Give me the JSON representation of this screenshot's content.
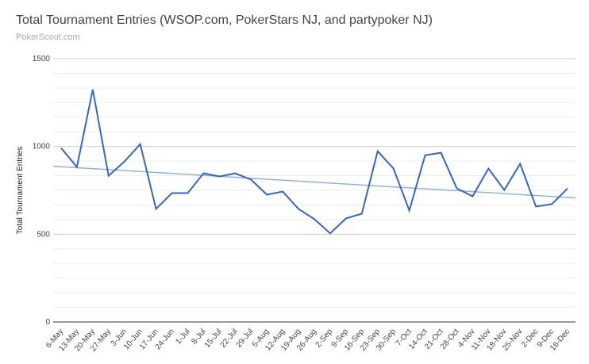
{
  "chart_data": {
    "type": "line",
    "title": "Total Tournament Entries (WSOP.com, PokerStars NJ, and partypoker NJ)",
    "subtitle": "PokerScout.com",
    "y_label": "Total Tournament Entries",
    "categories": [
      "6-May",
      "13-May",
      "20-May",
      "27-May",
      "3-Jun",
      "10-Jun",
      "17-Jun",
      "24-Jun",
      "1-Jul",
      "8-Jul",
      "15-Jul",
      "22-Jul",
      "29-Jul",
      "5-Aug",
      "12-Aug",
      "19-Aug",
      "26-Aug",
      "2-Sep",
      "9-Sep",
      "16-Sep",
      "23-Sep",
      "30-Sep",
      "7-Oct",
      "14-Oct",
      "21-Oct",
      "28-Oct",
      "4-Nov",
      "11-Nov",
      "18-Nov",
      "25-Nov",
      "2-Dec",
      "9-Dec",
      "16-Dec"
    ],
    "series": [
      {
        "name": "Total Tournament Entries",
        "color": "#3366cc",
        "values": [
          991,
          883,
          1324,
          833,
          914,
          1013,
          644,
          734,
          734,
          847,
          829,
          847,
          811,
          725,
          743,
          644,
          586,
          505,
          590,
          617,
          973,
          874,
          635,
          950,
          964,
          761,
          716,
          874,
          752,
          901,
          658,
          671,
          761
        ]
      }
    ],
    "trendline": {
      "color": "#8fb0e8",
      "start": 887,
      "end": 707
    },
    "ylim": [
      0,
      1500
    ],
    "yticks": [
      0,
      500,
      1000,
      1500
    ],
    "minor_gridlines": 5,
    "grid": true
  }
}
